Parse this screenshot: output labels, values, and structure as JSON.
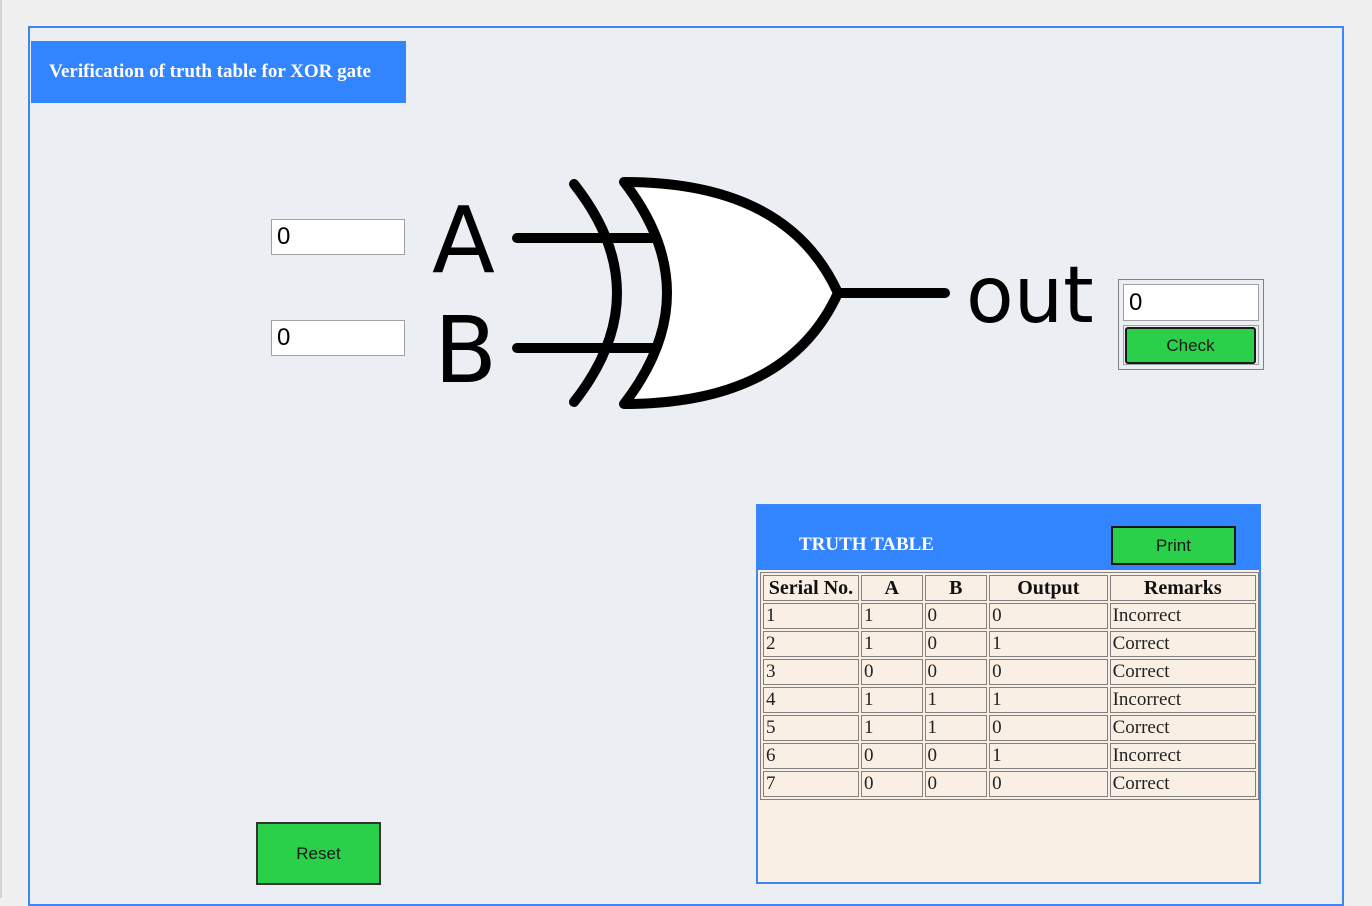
{
  "title": "Verification of truth table for XOR gate",
  "inputs": {
    "a_value": "0",
    "b_value": "0"
  },
  "gate": {
    "label_a": "A",
    "label_b": "B",
    "label_out": "out"
  },
  "output": {
    "value": "0",
    "check_label": "Check"
  },
  "reset_label": "Reset",
  "truth_table": {
    "title": "TRUTH TABLE",
    "print_label": "Print",
    "columns": [
      "Serial No.",
      "A",
      "B",
      "Output",
      "Remarks"
    ],
    "rows": [
      [
        "1",
        "1",
        "0",
        "0",
        "Incorrect"
      ],
      [
        "2",
        "1",
        "0",
        "1",
        "Correct"
      ],
      [
        "3",
        "0",
        "0",
        "0",
        "Correct"
      ],
      [
        "4",
        "1",
        "1",
        "1",
        "Incorrect"
      ],
      [
        "5",
        "1",
        "1",
        "0",
        "Correct"
      ],
      [
        "6",
        "0",
        "0",
        "1",
        "Incorrect"
      ],
      [
        "7",
        "0",
        "0",
        "0",
        "Correct"
      ]
    ]
  },
  "colors": {
    "accent_blue": "#3385ff",
    "button_green": "#2ad04a",
    "panel_bg": "#ebeef3",
    "table_bg": "#f9efe5"
  }
}
